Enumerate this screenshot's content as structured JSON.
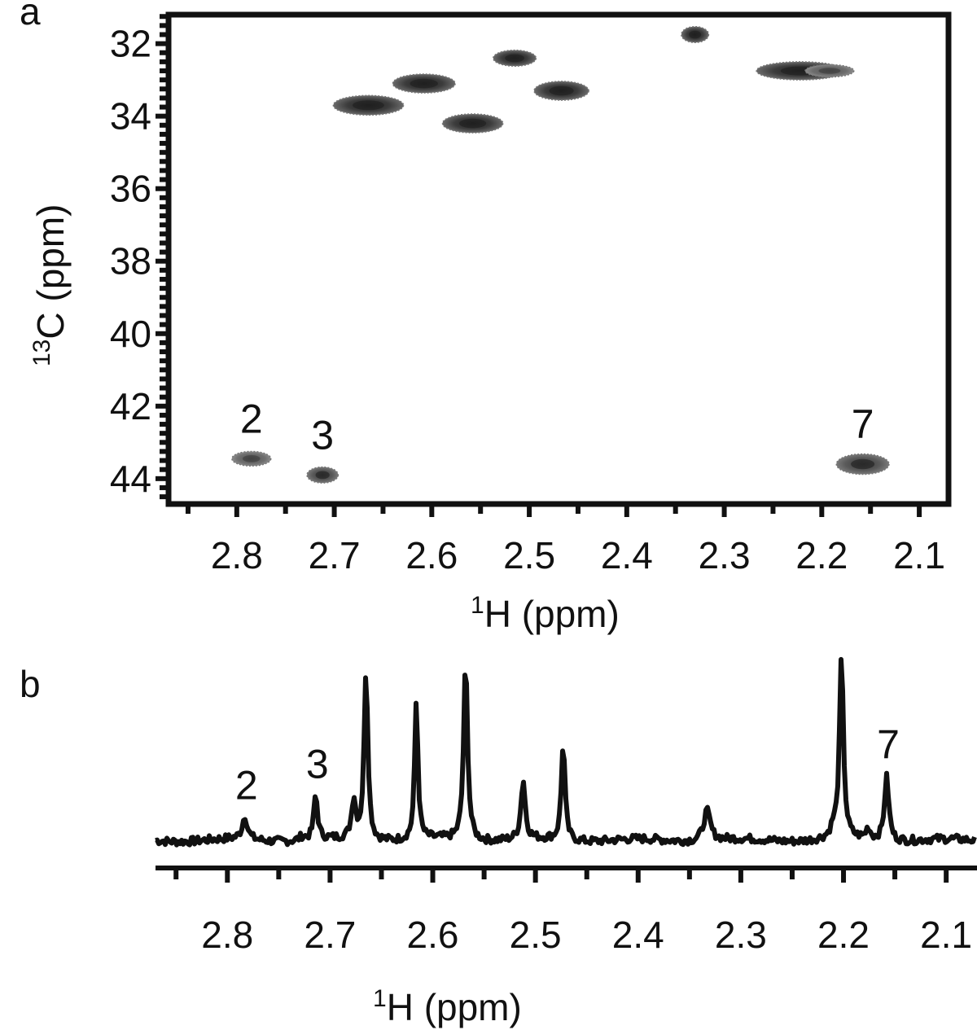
{
  "chart_data": [
    {
      "panel_label": "a",
      "type": "scatter",
      "subtype": "2d-nmr-hsqc-contour",
      "xlabel_sup": "1",
      "xlabel_main": "H (ppm)",
      "ylabel_sup": "13",
      "ylabel_main": "C (ppm)",
      "x_axis_reversed": true,
      "y_axis_reversed": true,
      "xlim": [
        2.87,
        2.07
      ],
      "ylim": [
        31.2,
        44.7
      ],
      "x_ticks": [
        2.8,
        2.7,
        2.6,
        2.5,
        2.4,
        2.3,
        2.2,
        2.1
      ],
      "x_tick_labels": [
        "2.8",
        "2.7",
        "2.6",
        "2.5",
        "2.4",
        "2.3",
        "2.2",
        "2.1"
      ],
      "y_ticks": [
        32,
        34,
        36,
        38,
        40,
        42,
        44
      ],
      "y_tick_labels": [
        "32",
        "34",
        "36",
        "38",
        "40",
        "42",
        "44"
      ],
      "grid": false,
      "colors": {
        "peak_dark": "#2e2e2e",
        "peak_mid": "#555555",
        "peak_light": "#6e6e6e",
        "axis": "#111111"
      },
      "peaks": [
        {
          "label": "",
          "x": 2.33,
          "y": 31.75,
          "wx": 0.014,
          "wy": 0.22,
          "shade": "dark"
        },
        {
          "label": "",
          "x": 2.515,
          "y": 32.4,
          "wx": 0.022,
          "wy": 0.22,
          "shade": "dark"
        },
        {
          "label": "",
          "x": 2.222,
          "y": 32.75,
          "wx": 0.045,
          "wy": 0.25,
          "shade": "dark"
        },
        {
          "label": "",
          "x": 2.192,
          "y": 32.75,
          "wx": 0.025,
          "wy": 0.17,
          "shade": "light"
        },
        {
          "label": "",
          "x": 2.608,
          "y": 33.1,
          "wx": 0.032,
          "wy": 0.26,
          "shade": "dark"
        },
        {
          "label": "",
          "x": 2.467,
          "y": 33.3,
          "wx": 0.028,
          "wy": 0.26,
          "shade": "dark"
        },
        {
          "label": "",
          "x": 2.665,
          "y": 33.7,
          "wx": 0.036,
          "wy": 0.27,
          "shade": "dark"
        },
        {
          "label": "",
          "x": 2.558,
          "y": 34.2,
          "wx": 0.031,
          "wy": 0.26,
          "shade": "dark"
        },
        {
          "label": "2",
          "x": 2.785,
          "y": 43.45,
          "wx": 0.02,
          "wy": 0.2,
          "shade": "light"
        },
        {
          "label": "3",
          "x": 2.712,
          "y": 43.9,
          "wx": 0.016,
          "wy": 0.22,
          "shade": "mid"
        },
        {
          "label": "7",
          "x": 2.158,
          "y": 43.6,
          "wx": 0.027,
          "wy": 0.28,
          "shade": "mid"
        }
      ]
    },
    {
      "panel_label": "b",
      "type": "line",
      "subtype": "1d-nmr-spectrum",
      "xlabel_sup": "1",
      "xlabel_main": "H (ppm)",
      "ylabel": "",
      "x_axis_reversed": true,
      "xlim": [
        2.87,
        2.07
      ],
      "x_ticks": [
        2.8,
        2.7,
        2.6,
        2.5,
        2.4,
        2.3,
        2.2,
        2.1
      ],
      "x_tick_labels": [
        "2.8",
        "2.7",
        "2.6",
        "2.5",
        "2.4",
        "2.3",
        "2.2",
        "2.1"
      ],
      "y_units": "relative intensity",
      "baseline": 0,
      "peaks": [
        {
          "label": "2",
          "x": 2.783,
          "height": 0.13,
          "width": 0.003
        },
        {
          "label": "",
          "x": 2.727,
          "height": 0.02,
          "width": 0.003
        },
        {
          "label": "3",
          "x": 2.714,
          "height": 0.25,
          "width": 0.0022
        },
        {
          "label": "",
          "x": 2.677,
          "height": 0.22,
          "width": 0.0025
        },
        {
          "label": "",
          "x": 2.665,
          "height": 0.96,
          "width": 0.0022
        },
        {
          "label": "",
          "x": 2.616,
          "height": 0.78,
          "width": 0.0019
        },
        {
          "label": "",
          "x": 2.568,
          "height": 1.0,
          "width": 0.0023
        },
        {
          "label": "",
          "x": 2.512,
          "height": 0.33,
          "width": 0.0025
        },
        {
          "label": "",
          "x": 2.473,
          "height": 0.55,
          "width": 0.0021
        },
        {
          "label": "",
          "x": 2.333,
          "height": 0.17,
          "width": 0.004
        },
        {
          "label": "",
          "x": 2.21,
          "height": 0.05,
          "width": 0.003
        },
        {
          "label": "",
          "x": 2.202,
          "height": 1.02,
          "width": 0.0023
        },
        {
          "label": "",
          "x": 2.176,
          "height": 0.06,
          "width": 0.0025
        },
        {
          "label": "7",
          "x": 2.158,
          "height": 0.36,
          "width": 0.0026
        }
      ]
    }
  ]
}
